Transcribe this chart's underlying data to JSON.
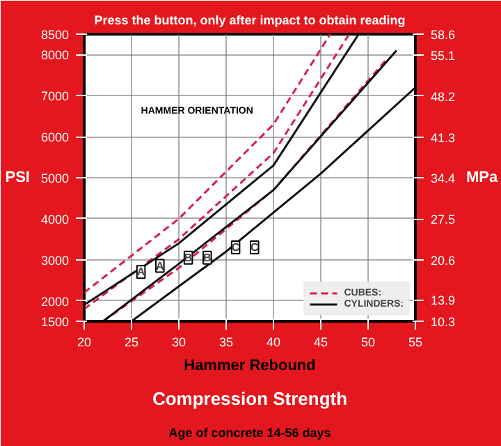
{
  "chart_data": {
    "type": "line",
    "title": "Press the button, only after impact to obtain reading",
    "subtitle": "Compression Strength",
    "xlabel": "Hammer Rebound",
    "ylabel": "PSI",
    "y2label": "MPa",
    "annotations": [
      "Age of concrete 14-56 days",
      "HAMMER ORIENTATION",
      {
        "text": "A",
        "x": 26,
        "y": 2700
      },
      {
        "text": "A",
        "x": 28,
        "y": 2850
      },
      {
        "text": "B",
        "x": 31,
        "y": 3050
      },
      {
        "text": "B",
        "x": 33,
        "y": 3050
      },
      {
        "text": "C",
        "x": 36,
        "y": 3300
      },
      {
        "text": "C",
        "x": 38,
        "y": 3300
      }
    ],
    "series": [
      {
        "name": "CUBES:",
        "color": "#d81f4a",
        "line_style": "dashed",
        "x": [
          20,
          30,
          40,
          46
        ],
        "values": [
          2200,
          4000,
          6300,
          8500
        ]
      },
      {
        "color": "#d81f4a",
        "line_style": "dashed",
        "x": [
          20,
          30,
          40,
          48
        ],
        "values": [
          1800,
          3500,
          5600,
          8500
        ]
      },
      {
        "color": "#d81f4a",
        "line_style": "dashed",
        "x": [
          22,
          30,
          40,
          52
        ],
        "values": [
          1500,
          2800,
          4700,
          7900
        ]
      },
      {
        "name": "CYLINDERS:",
        "color": "#111111",
        "line_style": "solid",
        "x": [
          20,
          30,
          40,
          49
        ],
        "values": [
          1900,
          3400,
          5300,
          8500
        ]
      },
      {
        "color": "#111111",
        "line_style": "solid",
        "x": [
          22,
          30,
          40,
          53
        ],
        "values": [
          1500,
          2900,
          4700,
          8100
        ]
      },
      {
        "color": "#111111",
        "line_style": "solid",
        "x": [
          25,
          35,
          45,
          55
        ],
        "values": [
          1500,
          3200,
          5100,
          7200
        ]
      }
    ],
    "xlim": [
      20,
      55
    ],
    "xticks": [
      20,
      25,
      30,
      35,
      40,
      45,
      50,
      55
    ],
    "ylim": [
      1500,
      8500
    ],
    "yticks": [
      1500,
      2000,
      3000,
      4000,
      5000,
      6000,
      7000,
      8000,
      8500
    ],
    "y2lim": [
      10.3,
      58.6
    ],
    "y2ticks": [
      10.3,
      13.9,
      20.6,
      27.5,
      34.4,
      41.3,
      48.2,
      55.1,
      58.6
    ],
    "grid": true,
    "legend": "bottom right",
    "marker": "none"
  }
}
